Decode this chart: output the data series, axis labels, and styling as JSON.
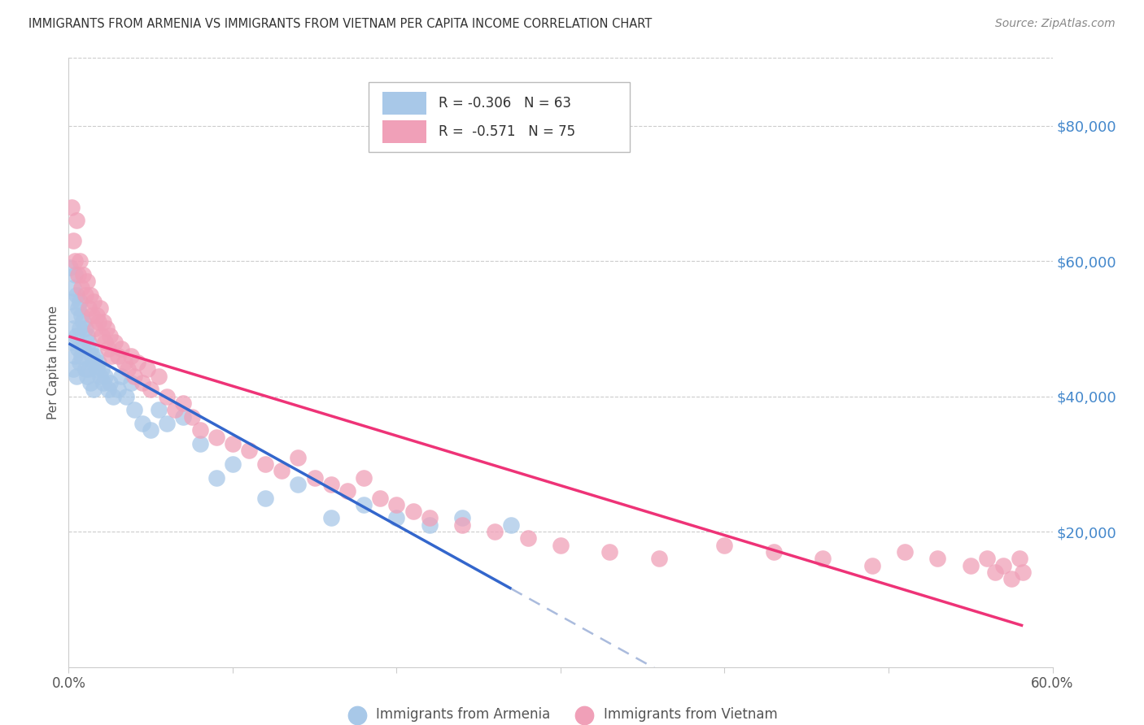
{
  "title": "IMMIGRANTS FROM ARMENIA VS IMMIGRANTS FROM VIETNAM PER CAPITA INCOME CORRELATION CHART",
  "source": "Source: ZipAtlas.com",
  "ylabel": "Per Capita Income",
  "ytick_labels": [
    "$20,000",
    "$40,000",
    "$60,000",
    "$80,000"
  ],
  "ytick_values": [
    20000,
    40000,
    60000,
    80000
  ],
  "ymin": 0,
  "ymax": 90000,
  "xmin": 0.0,
  "xmax": 0.6,
  "armenia_color": "#a8c8e8",
  "vietnam_color": "#f0a0b8",
  "armenia_line_color": "#3366cc",
  "vietnam_line_color": "#ee3377",
  "armenia_dashed_color": "#aabbdd",
  "armenia_R": "-0.306",
  "armenia_N": "63",
  "vietnam_R": "-0.571",
  "vietnam_N": "75",
  "armenia_scatter_x": [
    0.001,
    0.002,
    0.002,
    0.003,
    0.003,
    0.003,
    0.004,
    0.004,
    0.004,
    0.005,
    0.005,
    0.005,
    0.006,
    0.006,
    0.007,
    0.007,
    0.007,
    0.008,
    0.008,
    0.009,
    0.009,
    0.01,
    0.01,
    0.011,
    0.011,
    0.012,
    0.012,
    0.013,
    0.013,
    0.014,
    0.015,
    0.015,
    0.016,
    0.017,
    0.018,
    0.019,
    0.02,
    0.021,
    0.022,
    0.024,
    0.025,
    0.027,
    0.03,
    0.032,
    0.035,
    0.038,
    0.04,
    0.045,
    0.05,
    0.055,
    0.06,
    0.07,
    0.08,
    0.09,
    0.1,
    0.12,
    0.14,
    0.16,
    0.18,
    0.2,
    0.22,
    0.24,
    0.27
  ],
  "armenia_scatter_y": [
    59000,
    48000,
    54000,
    56000,
    50000,
    44000,
    58000,
    52000,
    46000,
    55000,
    49000,
    43000,
    53000,
    47000,
    54000,
    50000,
    45000,
    52000,
    46000,
    51000,
    47000,
    50000,
    44000,
    49000,
    43000,
    48000,
    44000,
    47000,
    42000,
    46000,
    45000,
    41000,
    46000,
    44000,
    45000,
    43000,
    44000,
    42000,
    43000,
    41000,
    42000,
    40000,
    41000,
    43000,
    40000,
    42000,
    38000,
    36000,
    35000,
    38000,
    36000,
    37000,
    33000,
    28000,
    30000,
    25000,
    27000,
    22000,
    24000,
    22000,
    21000,
    22000,
    21000
  ],
  "vietnam_scatter_x": [
    0.002,
    0.003,
    0.004,
    0.005,
    0.006,
    0.007,
    0.008,
    0.009,
    0.01,
    0.011,
    0.012,
    0.013,
    0.014,
    0.015,
    0.016,
    0.017,
    0.018,
    0.019,
    0.02,
    0.021,
    0.022,
    0.023,
    0.024,
    0.025,
    0.026,
    0.028,
    0.03,
    0.032,
    0.034,
    0.036,
    0.038,
    0.04,
    0.042,
    0.045,
    0.048,
    0.05,
    0.055,
    0.06,
    0.065,
    0.07,
    0.075,
    0.08,
    0.09,
    0.1,
    0.11,
    0.12,
    0.13,
    0.14,
    0.15,
    0.16,
    0.17,
    0.18,
    0.19,
    0.2,
    0.21,
    0.22,
    0.24,
    0.26,
    0.28,
    0.3,
    0.33,
    0.36,
    0.4,
    0.43,
    0.46,
    0.49,
    0.51,
    0.53,
    0.55,
    0.56,
    0.565,
    0.57,
    0.575,
    0.58,
    0.582
  ],
  "vietnam_scatter_y": [
    68000,
    63000,
    60000,
    66000,
    58000,
    60000,
    56000,
    58000,
    55000,
    57000,
    53000,
    55000,
    52000,
    54000,
    50000,
    52000,
    51000,
    53000,
    49000,
    51000,
    48000,
    50000,
    47000,
    49000,
    46000,
    48000,
    46000,
    47000,
    45000,
    44000,
    46000,
    43000,
    45000,
    42000,
    44000,
    41000,
    43000,
    40000,
    38000,
    39000,
    37000,
    35000,
    34000,
    33000,
    32000,
    30000,
    29000,
    31000,
    28000,
    27000,
    26000,
    28000,
    25000,
    24000,
    23000,
    22000,
    21000,
    20000,
    19000,
    18000,
    17000,
    16000,
    18000,
    17000,
    16000,
    15000,
    17000,
    16000,
    15000,
    16000,
    14000,
    15000,
    13000,
    16000,
    14000
  ]
}
